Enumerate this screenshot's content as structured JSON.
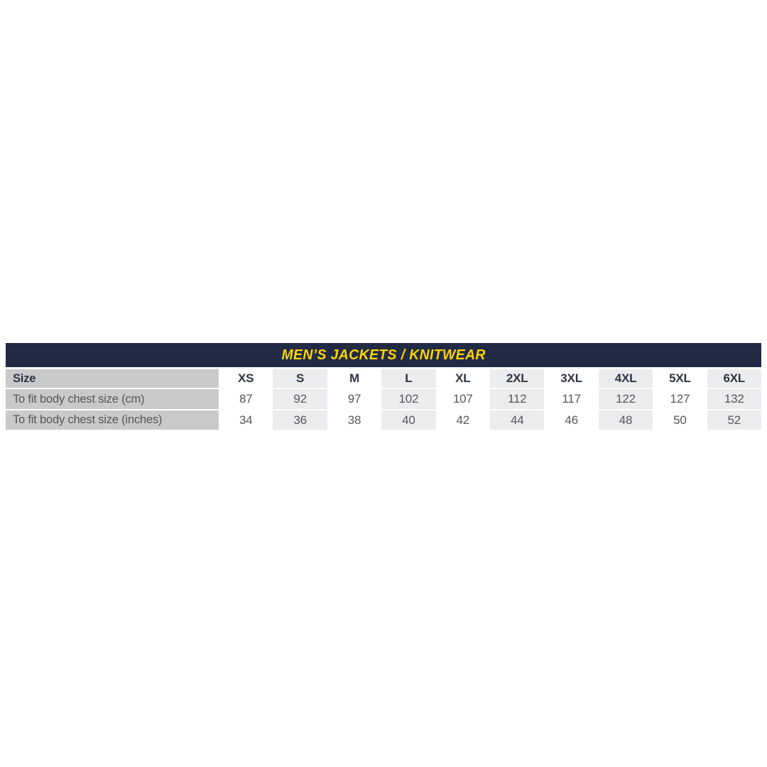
{
  "header": {
    "title": "MEN’S JACKETS / KNITWEAR"
  },
  "table": {
    "row_labels": {
      "size": "Size",
      "cm": "To fit body chest size (cm)",
      "inches": "To fit body chest size (inches)"
    },
    "columns": [
      "XS",
      "S",
      "M",
      "L",
      "XL",
      "2XL",
      "3XL",
      "4XL",
      "5XL",
      "6XL"
    ],
    "cm": [
      "87",
      "92",
      "97",
      "102",
      "107",
      "112",
      "117",
      "122",
      "127",
      "132"
    ],
    "inches": [
      "34",
      "36",
      "38",
      "40",
      "42",
      "44",
      "46",
      "48",
      "50",
      "52"
    ]
  },
  "chart_data": {
    "type": "table",
    "title": "MEN’S JACKETS / KNITWEAR",
    "columns": [
      "Size",
      "XS",
      "S",
      "M",
      "L",
      "XL",
      "2XL",
      "3XL",
      "4XL",
      "5XL",
      "6XL"
    ],
    "rows": [
      [
        "To fit body chest size (cm)",
        87,
        92,
        97,
        102,
        107,
        112,
        117,
        122,
        127,
        132
      ],
      [
        "To fit body chest size (inches)",
        34,
        36,
        38,
        40,
        42,
        44,
        46,
        48,
        50,
        52
      ]
    ]
  },
  "colors": {
    "navy": "#222b45",
    "yellow": "#fdd303",
    "col1-bg": "#c9c9ca",
    "alt-bg": "#ececee",
    "header-text": "#2e3444",
    "value-text": "#56575b"
  }
}
